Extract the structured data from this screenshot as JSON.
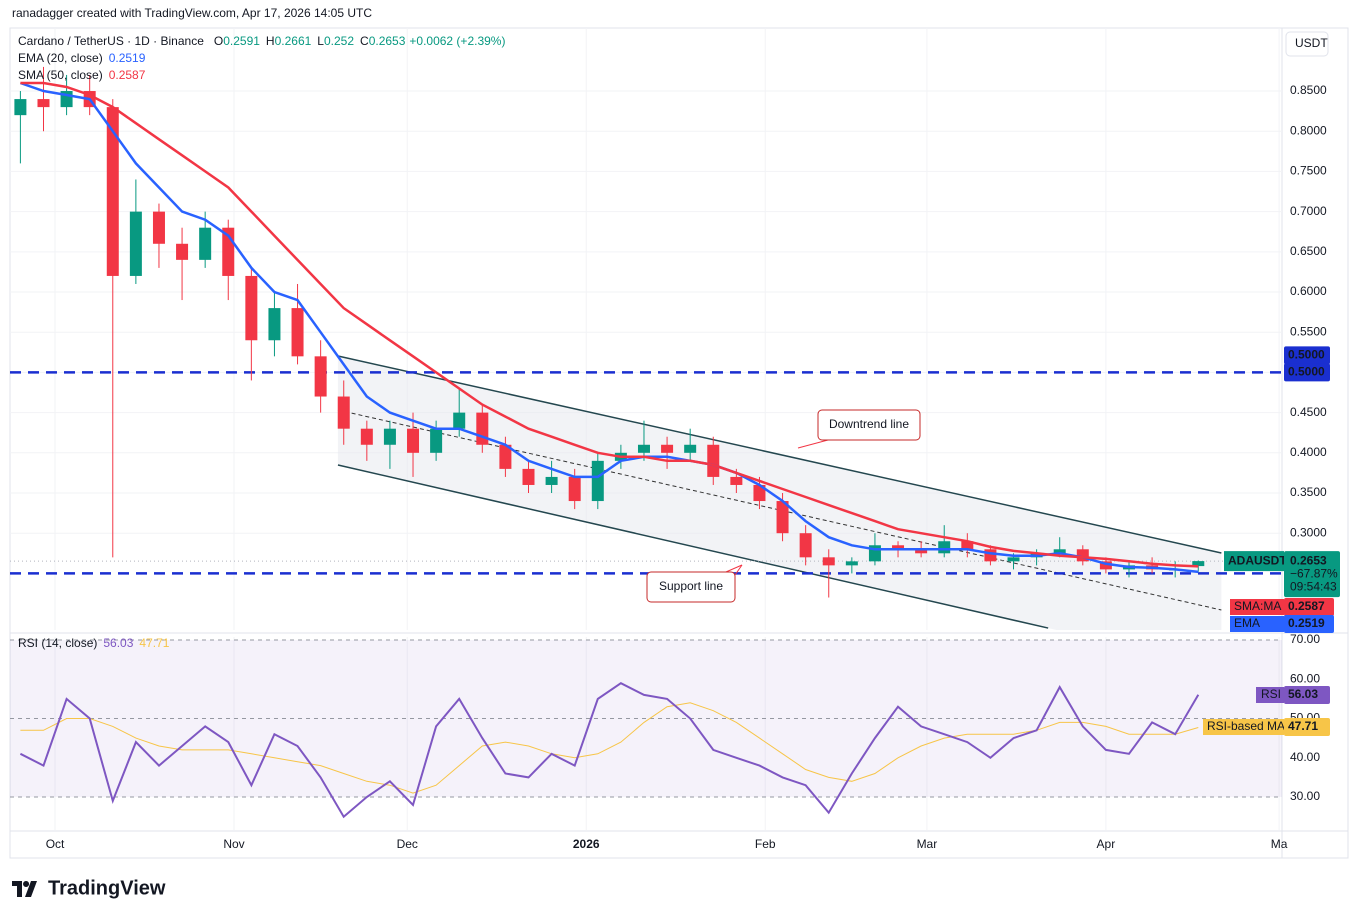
{
  "header": {
    "attribution": "ranadagger created with TradingView.com, Apr 17, 2026 14:05 UTC"
  },
  "chart_data": [
    {
      "type": "candlestick",
      "title": "Cardano / TetherUS · 1D · Binance",
      "ohlc_labels": [
        "O",
        "H",
        "L",
        "C"
      ],
      "change_label": "+0.0062 (+2.39%)",
      "y_axis_title": "USDT",
      "symbol": "ADAUSDT",
      "change_since": "−67.87%",
      "countdown": "09:54:43",
      "up_color": "#089981",
      "down_color": "#f23645",
      "x": [
        -6,
        -2,
        2,
        6,
        10,
        14,
        18,
        22,
        26,
        30,
        34,
        38,
        42,
        46,
        50,
        54,
        58,
        62,
        66,
        70,
        74,
        78,
        82,
        86,
        90,
        94,
        98,
        102,
        106,
        110,
        114,
        118,
        122,
        126,
        130,
        134,
        138,
        142,
        146,
        150,
        154,
        158,
        162,
        166,
        170,
        174,
        178,
        182,
        186,
        190,
        194,
        198
      ],
      "open": [
        0.82,
        0.84,
        0.83,
        0.85,
        0.83,
        0.62,
        0.7,
        0.66,
        0.64,
        0.68,
        0.62,
        0.54,
        0.58,
        0.52,
        0.47,
        0.43,
        0.41,
        0.43,
        0.4,
        0.43,
        0.45,
        0.41,
        0.38,
        0.36,
        0.37,
        0.34,
        0.39,
        0.4,
        0.41,
        0.4,
        0.41,
        0.37,
        0.36,
        0.34,
        0.3,
        0.27,
        0.26,
        0.265,
        0.285,
        0.28,
        0.275,
        0.29,
        0.28,
        0.265,
        0.27,
        0.275,
        0.28,
        0.265,
        0.255,
        0.26,
        0.255,
        0.2591
      ],
      "high": [
        0.85,
        0.88,
        0.87,
        0.87,
        0.84,
        0.74,
        0.71,
        0.68,
        0.7,
        0.69,
        0.63,
        0.6,
        0.61,
        0.54,
        0.49,
        0.44,
        0.44,
        0.45,
        0.44,
        0.48,
        0.46,
        0.42,
        0.39,
        0.39,
        0.38,
        0.4,
        0.41,
        0.44,
        0.42,
        0.43,
        0.42,
        0.38,
        0.37,
        0.35,
        0.31,
        0.28,
        0.27,
        0.3,
        0.29,
        0.29,
        0.31,
        0.3,
        0.285,
        0.275,
        0.28,
        0.295,
        0.285,
        0.27,
        0.265,
        0.27,
        0.265,
        0.2661
      ],
      "low": [
        0.76,
        0.8,
        0.82,
        0.82,
        0.27,
        0.61,
        0.63,
        0.59,
        0.63,
        0.59,
        0.49,
        0.52,
        0.51,
        0.45,
        0.41,
        0.39,
        0.38,
        0.37,
        0.39,
        0.42,
        0.4,
        0.37,
        0.35,
        0.35,
        0.33,
        0.33,
        0.38,
        0.39,
        0.38,
        0.39,
        0.36,
        0.35,
        0.33,
        0.29,
        0.26,
        0.22,
        0.25,
        0.26,
        0.27,
        0.27,
        0.27,
        0.27,
        0.26,
        0.255,
        0.26,
        0.27,
        0.26,
        0.25,
        0.245,
        0.25,
        0.245,
        0.252
      ],
      "close": [
        0.84,
        0.83,
        0.85,
        0.83,
        0.62,
        0.7,
        0.66,
        0.64,
        0.68,
        0.62,
        0.54,
        0.58,
        0.52,
        0.47,
        0.43,
        0.41,
        0.43,
        0.4,
        0.43,
        0.45,
        0.41,
        0.38,
        0.36,
        0.37,
        0.34,
        0.39,
        0.4,
        0.41,
        0.4,
        0.41,
        0.37,
        0.36,
        0.34,
        0.3,
        0.27,
        0.26,
        0.265,
        0.285,
        0.28,
        0.275,
        0.29,
        0.28,
        0.265,
        0.27,
        0.275,
        0.28,
        0.265,
        0.255,
        0.26,
        0.255,
        0.255,
        0.2653
      ],
      "series": [
        {
          "name": "EMA (20, close)",
          "tag": "EMA",
          "color": "#2962ff",
          "values": [
            0.86,
            0.85,
            0.845,
            0.84,
            0.8,
            0.76,
            0.73,
            0.7,
            0.69,
            0.67,
            0.63,
            0.6,
            0.59,
            0.55,
            0.51,
            0.47,
            0.45,
            0.44,
            0.43,
            0.43,
            0.42,
            0.41,
            0.39,
            0.38,
            0.37,
            0.37,
            0.39,
            0.395,
            0.395,
            0.39,
            0.385,
            0.375,
            0.36,
            0.34,
            0.315,
            0.295,
            0.285,
            0.28,
            0.28,
            0.28,
            0.28,
            0.28,
            0.275,
            0.272,
            0.272,
            0.275,
            0.27,
            0.262,
            0.258,
            0.257,
            0.255,
            0.2519
          ]
        },
        {
          "name": "SMA (50, close)",
          "tag": "SMA:MA",
          "color": "#f23645",
          "values": [
            0.86,
            0.86,
            0.855,
            0.845,
            0.83,
            0.81,
            0.79,
            0.77,
            0.75,
            0.73,
            0.7,
            0.67,
            0.64,
            0.61,
            0.58,
            0.56,
            0.54,
            0.52,
            0.5,
            0.48,
            0.46,
            0.445,
            0.43,
            0.42,
            0.41,
            0.4,
            0.395,
            0.395,
            0.39,
            0.39,
            0.385,
            0.375,
            0.365,
            0.355,
            0.345,
            0.335,
            0.325,
            0.315,
            0.305,
            0.3,
            0.295,
            0.29,
            0.283,
            0.278,
            0.275,
            0.272,
            0.27,
            0.268,
            0.265,
            0.262,
            0.26,
            0.2587
          ]
        }
      ],
      "levels": [
        {
          "value": 0.5,
          "label": "0.5000",
          "color": "#1a2fd0"
        },
        {
          "value": 0.25,
          "color": "#1a2fd0"
        }
      ],
      "channel": {
        "upper": [
          [
            49,
            0.5204
          ],
          [
            202,
            0.2754
          ]
        ],
        "lower": [
          [
            49,
            0.3848
          ],
          [
            172,
            0.182
          ]
        ],
        "mid": [
          [
            49,
            0.4532
          ],
          [
            202,
            0.2045
          ]
        ],
        "color": "#24474f"
      },
      "annotations": [
        "Downtrend line",
        "Support line"
      ],
      "xlim": [
        -7.8,
        212.5
      ],
      "xticks": [
        {
          "value": 0,
          "label": "Oct"
        },
        {
          "value": 31,
          "label": "Nov"
        },
        {
          "value": 61,
          "label": "Dec"
        },
        {
          "value": 92,
          "label": "2026"
        },
        {
          "value": 123,
          "label": "Feb"
        },
        {
          "value": 151,
          "label": "Mar"
        },
        {
          "value": 182,
          "label": "Apr"
        },
        {
          "value": 212,
          "label": "Ma"
        }
      ],
      "ylim": [
        0.1796,
        0.9284
      ],
      "yticks": [
        {
          "value": 0.3,
          "label": "0.3000"
        },
        {
          "value": 0.35,
          "label": "0.3500"
        },
        {
          "value": 0.4,
          "label": "0.4000"
        },
        {
          "value": 0.45,
          "label": "0.4500"
        },
        {
          "value": 0.5,
          "label": "0.5000"
        },
        {
          "value": 0.55,
          "label": "0.5500"
        },
        {
          "value": 0.6,
          "label": "0.6000"
        },
        {
          "value": 0.65,
          "label": "0.6500"
        },
        {
          "value": 0.7,
          "label": "0.7000"
        },
        {
          "value": 0.75,
          "label": "0.7500"
        },
        {
          "value": 0.8,
          "label": "0.8000"
        },
        {
          "value": 0.85,
          "label": "0.8500"
        }
      ],
      "grid": true
    },
    {
      "type": "line",
      "title": "RSI (14, close)",
      "series": [
        {
          "name": "RSI",
          "color": "#7e57c2",
          "width": 2,
          "values": [
            41,
            38,
            55,
            50,
            29,
            44,
            38,
            43,
            48,
            44,
            33,
            46,
            43,
            35,
            25,
            30,
            34,
            28,
            48,
            55,
            45,
            36,
            35,
            41,
            38,
            55,
            59,
            56,
            55,
            50,
            42,
            40,
            38,
            35,
            33,
            26,
            36,
            45,
            53,
            48,
            46,
            44,
            40,
            45,
            47,
            58,
            48,
            42,
            41,
            49,
            46,
            56.03
          ]
        },
        {
          "name": "RSI-based MA",
          "color": "#f7c548",
          "width": 1,
          "values": [
            47,
            47,
            50,
            50,
            48,
            45,
            43,
            42,
            42,
            42,
            41,
            40,
            39,
            38,
            36,
            34,
            33,
            31,
            33,
            38,
            43,
            44,
            43,
            41,
            40,
            41,
            44,
            49,
            53,
            54,
            52,
            49,
            45,
            41,
            37,
            35,
            34,
            36,
            40,
            43,
            45,
            46,
            46,
            46,
            47,
            49,
            49,
            48,
            46,
            46,
            46,
            47.71
          ]
        }
      ],
      "band": [
        30,
        70
      ],
      "levels": [
        70,
        50,
        30
      ],
      "ylim": [
        21.6,
        70.76
      ],
      "yticks": [
        {
          "value": 30,
          "label": "30.00"
        },
        {
          "value": 40,
          "label": "40.00"
        },
        {
          "value": 50,
          "label": "50.00"
        },
        {
          "value": 60,
          "label": "60.00"
        },
        {
          "value": 70,
          "label": "70.00"
        }
      ]
    }
  ],
  "footer": {
    "brand": "TradingView"
  }
}
